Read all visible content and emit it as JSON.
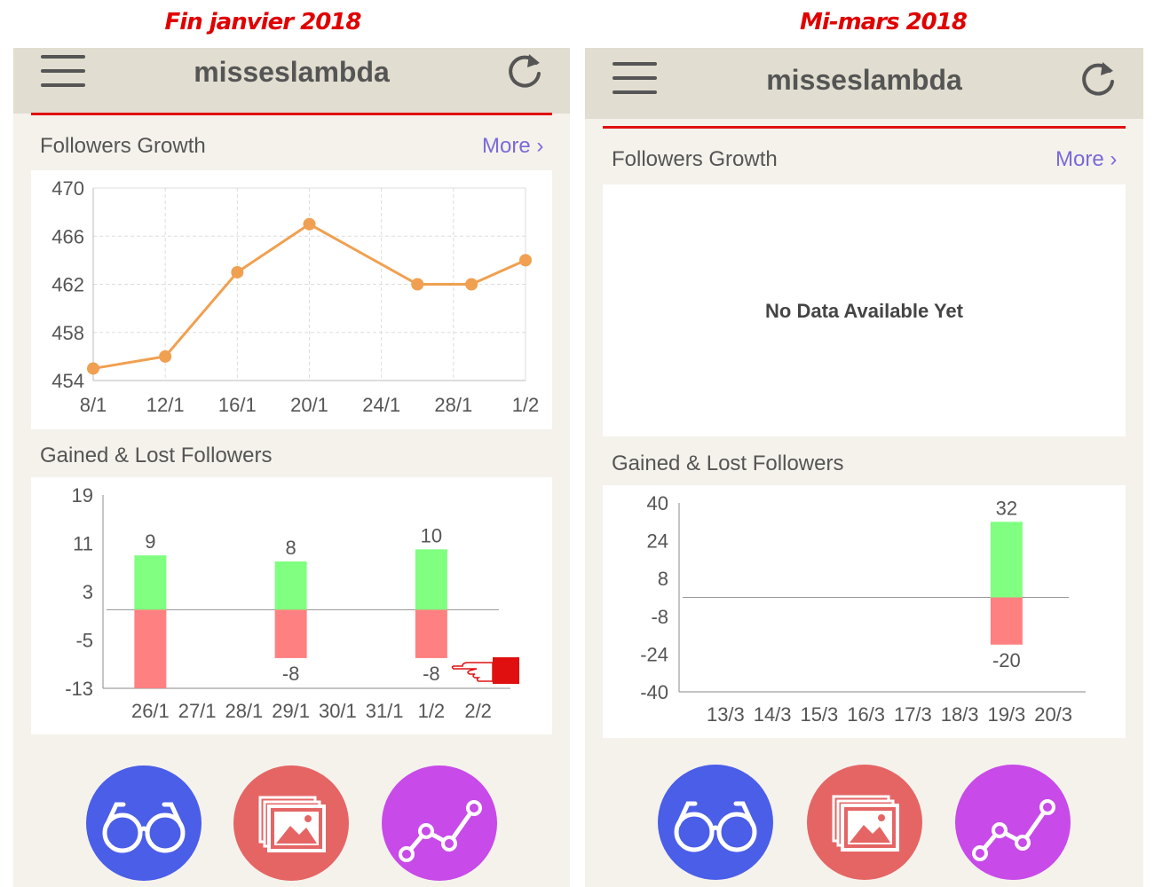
{
  "captions": {
    "left": "Fin janvier 2018",
    "right": "Mi-mars 2018"
  },
  "colors": {
    "navbar": "#e1ddd0",
    "background": "#f5f2ec",
    "accent_red": "#e01010",
    "line_orange": "#f0a050",
    "bar_gained": "#80ff80",
    "bar_lost": "#ff8080",
    "link": "#7b6ad8",
    "btn_blue": "#4a5ee8",
    "btn_red": "#e56565",
    "btn_purple": "#c84ae8"
  },
  "left_screen": {
    "header": {
      "title": "misseslambda",
      "menu_icon": "hamburger-menu-icon",
      "refresh_icon": "refresh-icon"
    },
    "growth": {
      "title": "Followers Growth",
      "more": "More ›"
    },
    "gained_lost": {
      "title": "Gained & Lost Followers",
      "annotation_icon": "pointing-hand-icon"
    },
    "buttons": [
      {
        "icon": "glasses-icon"
      },
      {
        "icon": "images-icon"
      },
      {
        "icon": "line-chart-icon"
      }
    ]
  },
  "right_screen": {
    "header": {
      "title": "misseslambda",
      "menu_icon": "hamburger-menu-icon",
      "refresh_icon": "refresh-icon"
    },
    "growth": {
      "title": "Followers Growth",
      "more": "More ›",
      "empty": "No Data Available Yet"
    },
    "gained_lost": {
      "title": "Gained & Lost Followers"
    },
    "buttons": [
      {
        "icon": "glasses-icon"
      },
      {
        "icon": "images-icon"
      },
      {
        "icon": "line-chart-icon"
      }
    ]
  },
  "chart_data": [
    {
      "id": "left-growth",
      "type": "line",
      "x_ticks": [
        "8/1",
        "12/1",
        "16/1",
        "20/1",
        "24/1",
        "28/1",
        "1/2"
      ],
      "x": [
        "8/1",
        "12/1",
        "16/1",
        "20/1",
        "26/1",
        "29/1",
        "1/2"
      ],
      "y": [
        455,
        456,
        463,
        467,
        462,
        462,
        464
      ],
      "y_ticks": [
        470,
        466,
        462,
        458,
        454
      ],
      "ylim": [
        454,
        470
      ],
      "grid": true
    },
    {
      "id": "left-gained-lost",
      "type": "bar",
      "categories": [
        "26/1",
        "27/1",
        "28/1",
        "29/1",
        "30/1",
        "31/1",
        "1/2",
        "2/2"
      ],
      "series": [
        {
          "values": [
            9,
            null,
            null,
            8,
            null,
            null,
            10,
            null
          ]
        },
        {
          "values": [
            -13,
            null,
            null,
            -8,
            null,
            null,
            -8,
            null
          ]
        }
      ],
      "data_labels": {
        "0": [
          "9",
          "",
          "",
          "8",
          "",
          "",
          "10",
          ""
        ],
        "1": [
          "",
          "",
          "",
          "-8",
          "",
          "",
          "-8",
          ""
        ]
      },
      "y_ticks": [
        19,
        11,
        3,
        -5,
        -13
      ],
      "ylim": [
        -13,
        19
      ]
    },
    {
      "id": "right-gained-lost",
      "type": "bar",
      "categories": [
        "13/3",
        "14/3",
        "15/3",
        "16/3",
        "17/3",
        "18/3",
        "19/3",
        "20/3"
      ],
      "series": [
        {
          "values": [
            null,
            null,
            null,
            null,
            null,
            null,
            32,
            null
          ]
        },
        {
          "values": [
            null,
            null,
            null,
            null,
            null,
            null,
            -20,
            null
          ]
        }
      ],
      "data_labels": {
        "0": [
          "",
          "",
          "",
          "",
          "",
          "",
          "32",
          ""
        ],
        "1": [
          "",
          "",
          "",
          "",
          "",
          "",
          "-20",
          ""
        ]
      },
      "y_ticks": [
        40,
        24,
        8,
        -8,
        -24,
        -40
      ],
      "ylim": [
        -40,
        40
      ]
    }
  ]
}
